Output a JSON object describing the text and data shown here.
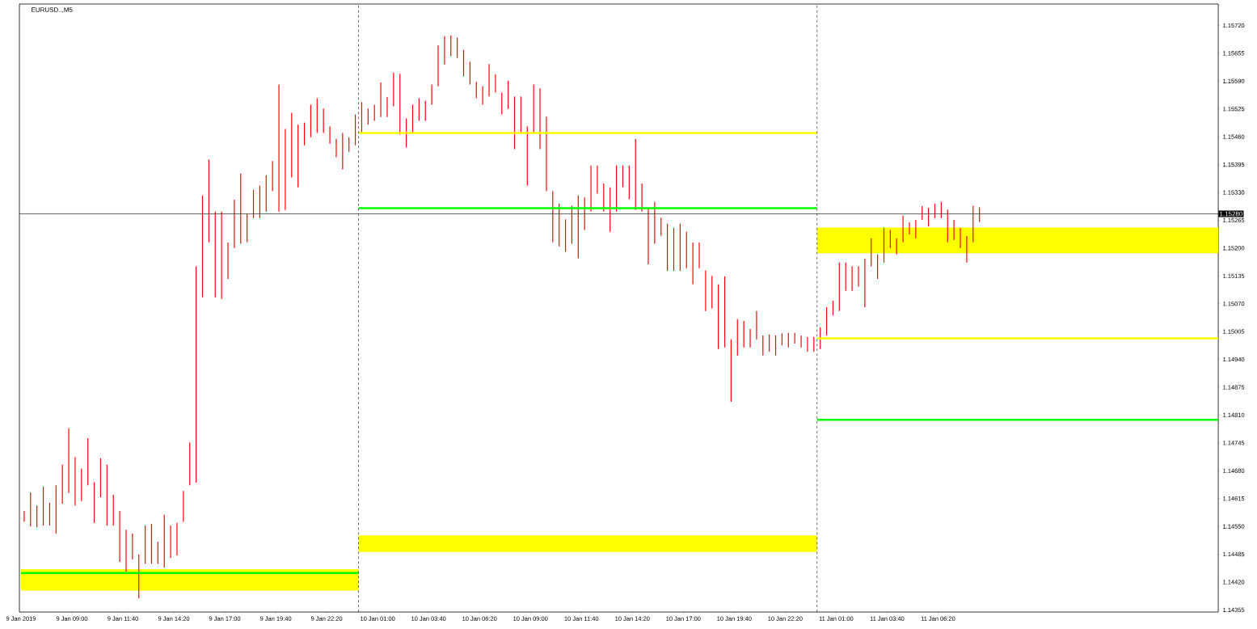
{
  "chart_data": {
    "type": "bar",
    "title": "EURUSD..,M5",
    "xlim": [
      "2019-01-09T06:15",
      "2019-01-11T21:00"
    ],
    "ylim": [
      1.1435,
      1.1577
    ],
    "xticks": [
      {
        "value": "2019-01-09T06:20",
        "label": "9 Jan 2019"
      },
      {
        "value": "2019-01-09T09:00",
        "label": "9 Jan 09:00"
      },
      {
        "value": "2019-01-09T11:40",
        "label": "9 Jan 11:40"
      },
      {
        "value": "2019-01-09T14:20",
        "label": "9 Jan 14:20"
      },
      {
        "value": "2019-01-09T17:00",
        "label": "9 Jan 17:00"
      },
      {
        "value": "2019-01-09T19:40",
        "label": "9 Jan 19:40"
      },
      {
        "value": "2019-01-09T22:20",
        "label": "9 Jan 22:20"
      },
      {
        "value": "2019-01-10T01:00",
        "label": "10 Jan 01:00"
      },
      {
        "value": "2019-01-10T03:40",
        "label": "10 Jan 03:40"
      },
      {
        "value": "2019-01-10T06:20",
        "label": "10 Jan 06:20"
      },
      {
        "value": "2019-01-10T09:00",
        "label": "10 Jan 09:00"
      },
      {
        "value": "2019-01-10T11:40",
        "label": "10 Jan 11:40"
      },
      {
        "value": "2019-01-10T14:20",
        "label": "10 Jan 14:20"
      },
      {
        "value": "2019-01-10T17:00",
        "label": "10 Jan 17:00"
      },
      {
        "value": "2019-01-10T19:40",
        "label": "10 Jan 19:40"
      },
      {
        "value": "2019-01-10T22:20",
        "label": "10 Jan 22:20"
      },
      {
        "value": "2019-01-11T01:00",
        "label": "11 Jan 01:00"
      },
      {
        "value": "2019-01-11T03:40",
        "label": "11 Jan 03:40"
      },
      {
        "value": "2019-01-11T06:20",
        "label": "11 Jan 06:20"
      }
    ],
    "yticks": [
      {
        "value": 1.1572,
        "label": "1.15720"
      },
      {
        "value": 1.15655,
        "label": "1.15655"
      },
      {
        "value": 1.1559,
        "label": "1.15590"
      },
      {
        "value": 1.15525,
        "label": "1.15525"
      },
      {
        "value": 1.1546,
        "label": "1.15460"
      },
      {
        "value": 1.15395,
        "label": "1.15395"
      },
      {
        "value": 1.1533,
        "label": "1.15330"
      },
      {
        "value": 1.15265,
        "label": "1.15265"
      },
      {
        "value": 1.152,
        "label": "1.15200"
      },
      {
        "value": 1.15135,
        "label": "1.15135"
      },
      {
        "value": 1.1507,
        "label": "1.15070"
      },
      {
        "value": 1.15005,
        "label": "1.15005"
      },
      {
        "value": 1.1494,
        "label": "1.14940"
      },
      {
        "value": 1.14875,
        "label": "1.14875"
      },
      {
        "value": 1.1481,
        "label": "1.14810"
      },
      {
        "value": 1.14745,
        "label": "1.14745"
      },
      {
        "value": 1.1468,
        "label": "1.14680"
      },
      {
        "value": 1.14615,
        "label": "1.14615"
      },
      {
        "value": 1.1455,
        "label": "1.14550"
      },
      {
        "value": 1.14485,
        "label": "1.14485"
      },
      {
        "value": 1.1442,
        "label": "1.14420"
      },
      {
        "value": 1.14355,
        "label": "1.14355"
      }
    ],
    "ref_lines": [
      {
        "axis": "x",
        "value": "2019-01-10T00:00",
        "color": "#000000",
        "line_style": "dashed"
      },
      {
        "axis": "x",
        "value": "2019-01-11T00:00",
        "color": "#000000",
        "line_style": "dashed"
      },
      {
        "axis": "y",
        "value": 1.1528,
        "label": "1.15280",
        "color": "#000000",
        "line_style": "solid"
      }
    ],
    "series": [
      {
        "type": "line",
        "color": "#ffff00",
        "x": [
          "2019-01-09T06:20",
          "2019-01-10T00:00"
        ],
        "values": [
          null,
          null
        ],
        "upper": [
          1.1445,
          1.1445
        ],
        "lower": [
          1.144,
          1.144
        ]
      },
      {
        "type": "line",
        "color": "#ffff00",
        "x": [
          "2019-01-10T00:00",
          "2019-01-11T00:00"
        ],
        "values": [
          1.15469,
          1.15469
        ]
      },
      {
        "type": "line",
        "color": "#ffff00",
        "x": [
          "2019-01-10T00:00",
          "2019-01-11T00:00"
        ],
        "values": [
          null,
          null
        ],
        "upper": [
          1.14529,
          1.14529
        ],
        "lower": [
          1.1449,
          1.1449
        ]
      },
      {
        "type": "line",
        "color": "#ffff00",
        "x": [
          "2019-01-11T00:00",
          "2019-01-11T21:00"
        ],
        "values": [
          null,
          null
        ],
        "upper": [
          1.15248,
          1.15248
        ],
        "lower": [
          1.15188,
          1.15188
        ]
      },
      {
        "type": "line",
        "color": "#ffff00",
        "x": [
          "2019-01-11T00:00",
          "2019-01-11T21:00"
        ],
        "values": [
          1.14989,
          1.14989
        ]
      },
      {
        "color": "#ff0000",
        "x": [
          "2019-01-09T06:30",
          "2019-01-09T06:50",
          "2019-01-09T07:10",
          "2019-01-09T07:30",
          "2019-01-09T07:50",
          "2019-01-09T08:10",
          "2019-01-09T08:30",
          "2019-01-09T08:50",
          "2019-01-09T09:10",
          "2019-01-09T09:30",
          "2019-01-09T09:50",
          "2019-01-09T10:10",
          "2019-01-09T10:30",
          "2019-01-09T10:50",
          "2019-01-09T11:10",
          "2019-01-09T11:30",
          "2019-01-09T11:50",
          "2019-01-09T12:10",
          "2019-01-09T12:30",
          "2019-01-09T12:50",
          "2019-01-09T13:10",
          "2019-01-09T13:30",
          "2019-01-09T13:50",
          "2019-01-09T14:10",
          "2019-01-09T14:30",
          "2019-01-09T14:50",
          "2019-01-09T15:10",
          "2019-01-09T15:30",
          "2019-01-09T15:50",
          "2019-01-09T16:10",
          "2019-01-09T16:30",
          "2019-01-09T16:50",
          "2019-01-09T17:10",
          "2019-01-09T17:30",
          "2019-01-09T17:50",
          "2019-01-09T18:10",
          "2019-01-09T18:30",
          "2019-01-09T18:50",
          "2019-01-09T19:10",
          "2019-01-09T19:30",
          "2019-01-09T19:50",
          "2019-01-09T20:10",
          "2019-01-09T20:30",
          "2019-01-09T20:50",
          "2019-01-09T21:10",
          "2019-01-09T21:30",
          "2019-01-09T21:50",
          "2019-01-09T22:10",
          "2019-01-09T22:30",
          "2019-01-09T22:50",
          "2019-01-09T23:10",
          "2019-01-09T23:30",
          "2019-01-09T23:50",
          "2019-01-10T00:10",
          "2019-01-10T00:30",
          "2019-01-10T00:50",
          "2019-01-10T01:10",
          "2019-01-10T01:30",
          "2019-01-10T01:50",
          "2019-01-10T02:10",
          "2019-01-10T02:30",
          "2019-01-10T02:50",
          "2019-01-10T03:10",
          "2019-01-10T03:30",
          "2019-01-10T03:50",
          "2019-01-10T04:10",
          "2019-01-10T04:30",
          "2019-01-10T04:50",
          "2019-01-10T05:10",
          "2019-01-10T05:30",
          "2019-01-10T05:50",
          "2019-01-10T06:10",
          "2019-01-10T06:30",
          "2019-01-10T06:50",
          "2019-01-10T07:10",
          "2019-01-10T07:30",
          "2019-01-10T07:50",
          "2019-01-10T08:10",
          "2019-01-10T08:30",
          "2019-01-10T08:50",
          "2019-01-10T09:10",
          "2019-01-10T09:30",
          "2019-01-10T09:50",
          "2019-01-10T10:10",
          "2019-01-10T10:30",
          "2019-01-10T10:50",
          "2019-01-10T11:10",
          "2019-01-10T11:30",
          "2019-01-10T11:50",
          "2019-01-10T12:10",
          "2019-01-10T12:30",
          "2019-01-10T12:50",
          "2019-01-10T13:10",
          "2019-01-10T13:30",
          "2019-01-10T13:50",
          "2019-01-10T14:10",
          "2019-01-10T14:30",
          "2019-01-10T14:50",
          "2019-01-10T15:10",
          "2019-01-10T15:30",
          "2019-01-10T15:50",
          "2019-01-10T16:10",
          "2019-01-10T16:30",
          "2019-01-10T16:50",
          "2019-01-10T17:10",
          "2019-01-10T17:30",
          "2019-01-10T17:50",
          "2019-01-10T18:10",
          "2019-01-10T18:30",
          "2019-01-10T18:50",
          "2019-01-10T19:10",
          "2019-01-10T19:30",
          "2019-01-10T19:50",
          "2019-01-10T20:10",
          "2019-01-10T20:30",
          "2019-01-10T20:50",
          "2019-01-10T21:10",
          "2019-01-10T21:30",
          "2019-01-10T21:50",
          "2019-01-10T22:10",
          "2019-01-10T22:30",
          "2019-01-10T22:50",
          "2019-01-10T23:10",
          "2019-01-10T23:30",
          "2019-01-10T23:50",
          "2019-01-11T00:10",
          "2019-01-11T00:30",
          "2019-01-11T00:50",
          "2019-01-11T01:10",
          "2019-01-11T01:30",
          "2019-01-11T01:50",
          "2019-01-11T02:10",
          "2019-01-11T02:30",
          "2019-01-11T02:50",
          "2019-01-11T03:10",
          "2019-01-11T03:30",
          "2019-01-11T03:50",
          "2019-01-11T04:10",
          "2019-01-11T04:30",
          "2019-01-11T04:50",
          "2019-01-11T05:10",
          "2019-01-11T05:30",
          "2019-01-11T05:50",
          "2019-01-11T06:10",
          "2019-01-11T06:30",
          "2019-01-11T06:50",
          "2019-01-11T07:10",
          "2019-01-11T07:30",
          "2019-01-11T07:50",
          "2019-01-11T08:10",
          "2019-01-11T08:30"
        ],
        "base": [
          1.14561,
          1.1455,
          1.14548,
          1.14552,
          1.14552,
          1.14533,
          1.14603,
          1.14628,
          1.14599,
          1.14609,
          1.14646,
          1.14558,
          1.14618,
          1.14552,
          1.14552,
          1.14467,
          1.14444,
          1.14473,
          1.14382,
          1.14463,
          1.14463,
          1.14463,
          1.14454,
          1.14476,
          1.14482,
          1.14561,
          1.14646,
          1.14652,
          1.15085,
          1.15214,
          1.15085,
          1.15081,
          1.15128,
          1.152,
          1.1521,
          1.15214,
          1.1527,
          1.1527,
          1.15285,
          1.15333,
          1.15285,
          1.15289,
          1.15365,
          1.15342,
          1.1544,
          1.15459,
          1.15469,
          1.15469,
          1.15444,
          1.15412,
          1.15384,
          1.15425,
          1.1544,
          1.15469,
          1.15488,
          1.15497,
          1.15506,
          1.15506,
          1.15531,
          1.15465,
          1.15435,
          1.15469,
          1.15497,
          1.15497,
          1.15535,
          1.15578,
          1.15629,
          1.15648,
          1.15644,
          1.15601,
          1.15582,
          1.1555,
          1.15535,
          1.15554,
          1.15563,
          1.15512,
          1.15525,
          1.15431,
          1.15469,
          1.15346,
          1.15469,
          1.15431,
          1.15333,
          1.15214,
          1.15204,
          1.15191,
          1.1521,
          1.15176,
          1.15242,
          1.15285,
          1.15327,
          1.15285,
          1.15238,
          1.15285,
          1.15342,
          1.15314,
          1.15289,
          1.15285,
          1.15162,
          1.1521,
          1.15229,
          1.15147,
          1.15147,
          1.15147,
          1.15153,
          1.15115,
          1.15153,
          1.15053,
          1.15059,
          1.14964,
          1.14968,
          1.14841,
          1.14949,
          1.14968,
          1.14968,
          1.14987,
          1.14949,
          1.14958,
          1.14949,
          1.14973,
          1.14968,
          1.14977,
          1.14968,
          1.14958,
          1.14958,
          1.14964,
          1.14996,
          1.15043,
          1.15053,
          1.151,
          1.151,
          1.1511,
          1.15062,
          1.15157,
          1.15128,
          1.15166,
          1.152,
          1.15185,
          1.15214,
          1.15232,
          1.15223,
          1.15266,
          1.15251,
          1.1527,
          1.1527,
          1.15214,
          1.15219,
          1.152,
          1.15166,
          1.15214,
          1.15261
        ],
        "values": [
          0.00025,
          0.00079,
          0.00051,
          0.00091,
          0.00053,
          0.00113,
          0.00091,
          0.00151,
          0.00113,
          0.00076,
          0.0011,
          0.00095,
          0.00091,
          0.00142,
          0.00072,
          0.00119,
          0.00098,
          0.0006,
          0.00102,
          0.00089,
          0.00093,
          0.00051,
          0.00123,
          0.00076,
          0.00076,
          0.00072,
          0.001,
          0.00505,
          0.00238,
          0.00193,
          0.002,
          0.00204,
          0.00085,
          0.00113,
          0.00164,
          0.00066,
          0.00066,
          0.00076,
          0.00085,
          0.0007,
          0.00297,
          0.00189,
          0.00151,
          0.00146,
          0.00053,
          0.00076,
          0.00081,
          0.00057,
          0.0004,
          0.00043,
          0.00085,
          0.00034,
          0.00072,
          0.00072,
          0.00038,
          0.00038,
          0.00081,
          0.00047,
          0.00079,
          0.00142,
          0.00068,
          0.00066,
          0.00053,
          0.00047,
          0.00047,
          0.00095,
          0.00066,
          0.00049,
          0.00047,
          0.00062,
          0.00053,
          0.00038,
          0.00043,
          0.00076,
          0.00043,
          0.00051,
          0.00066,
          0.00123,
          0.00085,
          0.00138,
          0.00113,
          0.00142,
          0.00174,
          0.00119,
          0.001,
          0.00076,
          0.00089,
          0.00147,
          0.00076,
          0.00108,
          0.00066,
          0.00066,
          0.00104,
          0.00108,
          0.00051,
          0.00079,
          0.00166,
          0.00066,
          0.00132,
          0.00098,
          0.00042,
          0.0011,
          0.001,
          0.0011,
          0.00085,
          0.00098,
          0.0006,
          0.00095,
          0.00076,
          0.00151,
          0.00166,
          0.00146,
          0.00085,
          0.00062,
          0.00043,
          0.00066,
          0.00047,
          0.0004,
          0.00047,
          0.00028,
          0.00034,
          0.00025,
          0.00028,
          0.00034,
          0.00034,
          0.00051,
          0.00066,
          0.00034,
          0.00113,
          0.00066,
          0.00057,
          0.00047,
          0.00113,
          0.00066,
          0.00057,
          0.00081,
          0.00042,
          0.00038,
          0.00062,
          0.00028,
          0.00043,
          0.00032,
          0.00043,
          0.00034,
          0.00038,
          0.00076,
          0.00047,
          0.00047,
          0.00062,
          0.00085,
          0.00034
        ]
      },
      {
        "type": "line",
        "color": "#00ff00",
        "x": [
          "2019-01-09T06:20",
          "2019-01-10T00:00"
        ],
        "values": [
          1.14441,
          1.14441
        ]
      },
      {
        "type": "line",
        "color": "#00ff00",
        "x": [
          "2019-01-10T00:00",
          "2019-01-11T00:00"
        ],
        "values": [
          1.15293,
          1.15293
        ]
      },
      {
        "type": "line",
        "color": "#00ff00",
        "x": [
          "2019-01-11T00:00",
          "2019-01-11T21:00"
        ],
        "values": [
          1.14799,
          1.14799
        ]
      }
    ]
  }
}
